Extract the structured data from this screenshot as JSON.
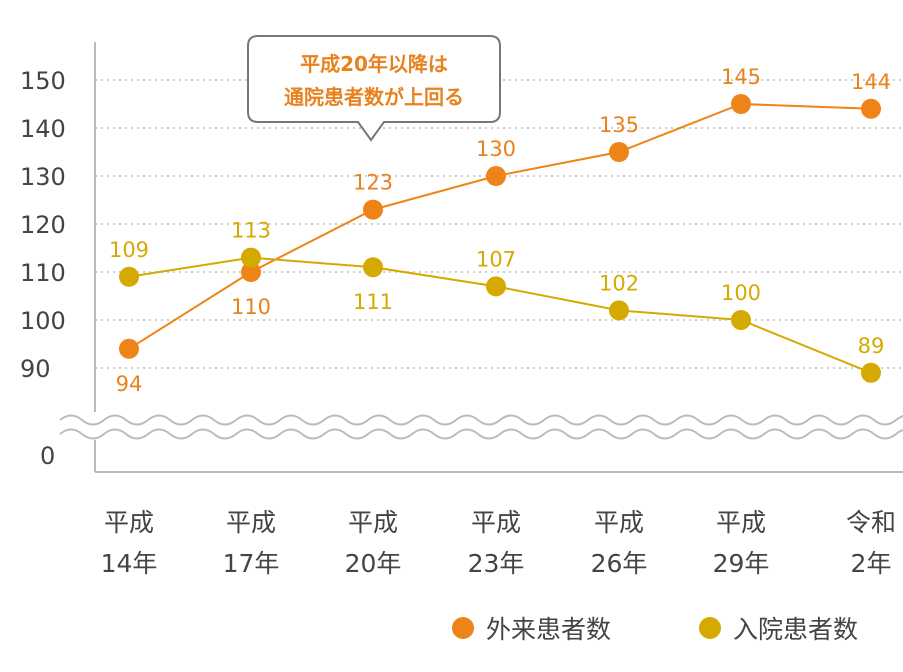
{
  "chart_data": {
    "type": "line",
    "categories": [
      [
        "平成",
        "14年"
      ],
      [
        "平成",
        "17年"
      ],
      [
        "平成",
        "20年"
      ],
      [
        "平成",
        "23年"
      ],
      [
        "平成",
        "26年"
      ],
      [
        "平成",
        "29年"
      ],
      [
        "令和",
        "2年"
      ]
    ],
    "series": [
      {
        "name": "外来患者数",
        "color": "#ee8418",
        "values": [
          94,
          110,
          123,
          130,
          135,
          145,
          144
        ]
      },
      {
        "name": "入院患者数",
        "color": "#d4aa00",
        "values": [
          109,
          113,
          111,
          107,
          102,
          100,
          89
        ]
      }
    ],
    "y_ticks": [
      "150",
      "140",
      "130",
      "120",
      "110",
      "100",
      "90"
    ],
    "y_zero": "0",
    "ylim": [
      0,
      150
    ],
    "axis_break": true,
    "grid": true,
    "annotation": [
      "平成20年以降は",
      "通院患者数が上回る"
    ],
    "legend_position": "bottom-right",
    "label_color_series_0": "#e8821e",
    "label_color_series_1": "#d4aa00",
    "grid_color": "#cfcfcf",
    "axis_color": "#bbbbbb"
  }
}
